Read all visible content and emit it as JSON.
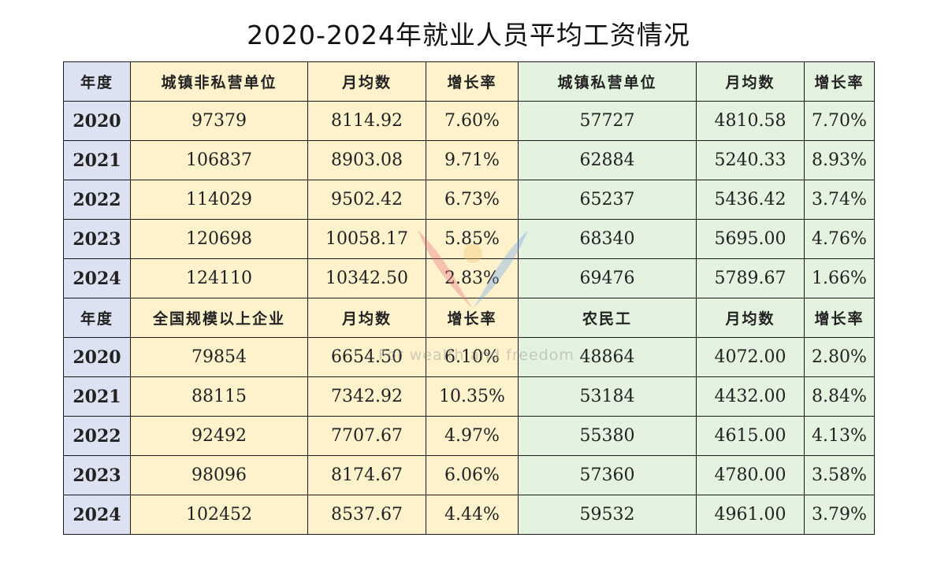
{
  "title": "2020-2024年就业人员平均工资情况",
  "watermark": "For wealth and freedom",
  "colors": {
    "year_col": "#dde2f2",
    "yellow_block": "#fdf2cc",
    "green_block": "#e4f3df"
  },
  "table1": {
    "headers": [
      "年度",
      "城镇非私营单位",
      "月均数",
      "增长率",
      "城镇私营单位",
      "月均数",
      "增长率"
    ],
    "rows": [
      [
        "2020",
        "97379",
        "8114.92",
        "7.60%",
        "57727",
        "4810.58",
        "7.70%"
      ],
      [
        "2021",
        "106837",
        "8903.08",
        "9.71%",
        "62884",
        "5240.33",
        "8.93%"
      ],
      [
        "2022",
        "114029",
        "9502.42",
        "6.73%",
        "65237",
        "5436.42",
        "3.74%"
      ],
      [
        "2023",
        "120698",
        "10058.17",
        "5.85%",
        "68340",
        "5695.00",
        "4.76%"
      ],
      [
        "2024",
        "124110",
        "10342.50",
        "2.83%",
        "69476",
        "5789.67",
        "1.66%"
      ]
    ]
  },
  "table2": {
    "headers": [
      "年度",
      "全国规模以上企业",
      "月均数",
      "增长率",
      "农民工",
      "月均数",
      "增长率"
    ],
    "rows": [
      [
        "2020",
        "79854",
        "6654.50",
        "6.10%",
        "48864",
        "4072.00",
        "2.80%"
      ],
      [
        "2021",
        "88115",
        "7342.92",
        "10.35%",
        "53184",
        "4432.00",
        "8.84%"
      ],
      [
        "2022",
        "92492",
        "7707.67",
        "4.97%",
        "55380",
        "4615.00",
        "4.13%"
      ],
      [
        "2023",
        "98096",
        "8174.67",
        "6.06%",
        "57360",
        "4780.00",
        "3.58%"
      ],
      [
        "2024",
        "102452",
        "8537.67",
        "4.44%",
        "59532",
        "4961.00",
        "3.79%"
      ]
    ]
  }
}
